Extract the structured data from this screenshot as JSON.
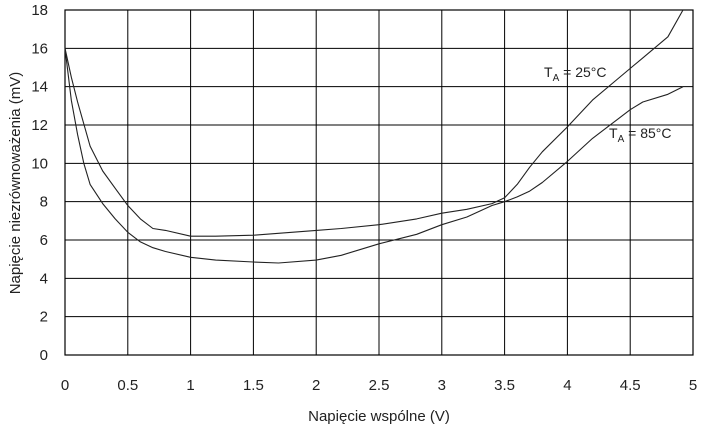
{
  "chart_data": {
    "type": "line",
    "title": "",
    "xlabel": "Napięcie wspólne (V)",
    "ylabel": "Napięcie niezrównoważenia (mV)",
    "xlim": [
      0,
      5
    ],
    "ylim": [
      0,
      18
    ],
    "grid": true,
    "xticks": [
      0,
      0.5,
      1,
      1.5,
      2,
      2.5,
      3,
      3.5,
      4,
      4.5,
      5
    ],
    "xtick_labels": [
      "0",
      "0.5",
      "1",
      "1.5",
      "2",
      "2.5",
      "3",
      "3.5",
      "4",
      "4.5",
      "5"
    ],
    "yticks": [
      0,
      2,
      4,
      6,
      8,
      10,
      12,
      14,
      16,
      18
    ],
    "ytick_labels": [
      "0",
      "2",
      "4",
      "6",
      "8",
      "10",
      "12",
      "14",
      "16",
      "18"
    ],
    "series": [
      {
        "name": "TA = 25°C",
        "label_main": "T",
        "label_sub": "A",
        "label_rest": " = 25°C",
        "x": [
          0,
          0.05,
          0.1,
          0.2,
          0.3,
          0.4,
          0.5,
          0.6,
          0.7,
          0.8,
          1.0,
          1.2,
          1.5,
          1.7,
          2.0,
          2.2,
          2.5,
          2.8,
          3.0,
          3.2,
          3.4,
          3.5,
          3.6,
          3.7,
          3.8,
          4.0,
          4.2,
          4.4,
          4.6,
          4.8,
          4.92
        ],
        "y": [
          16.0,
          14.5,
          13.2,
          10.9,
          9.6,
          8.7,
          7.8,
          7.1,
          6.6,
          6.5,
          6.2,
          6.2,
          6.25,
          6.35,
          6.5,
          6.6,
          6.8,
          7.1,
          7.4,
          7.6,
          7.9,
          8.2,
          8.9,
          9.8,
          10.6,
          11.9,
          13.3,
          14.4,
          15.5,
          16.6,
          18.0
        ]
      },
      {
        "name": "TA = 85°C",
        "label_main": "T",
        "label_sub": "A",
        "label_rest": " = 85°C",
        "x": [
          0,
          0.05,
          0.1,
          0.15,
          0.2,
          0.3,
          0.4,
          0.5,
          0.6,
          0.7,
          0.8,
          1.0,
          1.2,
          1.5,
          1.7,
          2.0,
          2.2,
          2.5,
          2.8,
          3.0,
          3.2,
          3.4,
          3.5,
          3.6,
          3.7,
          3.8,
          4.0,
          4.2,
          4.4,
          4.5,
          4.6,
          4.8,
          4.92
        ],
        "y": [
          16.0,
          13.3,
          11.5,
          10.0,
          8.9,
          7.9,
          7.1,
          6.4,
          5.9,
          5.6,
          5.4,
          5.1,
          4.95,
          4.85,
          4.8,
          4.95,
          5.2,
          5.8,
          6.3,
          6.8,
          7.2,
          7.8,
          8.0,
          8.25,
          8.55,
          9.0,
          10.1,
          11.3,
          12.3,
          12.8,
          13.2,
          13.6,
          14.0
        ]
      }
    ]
  }
}
